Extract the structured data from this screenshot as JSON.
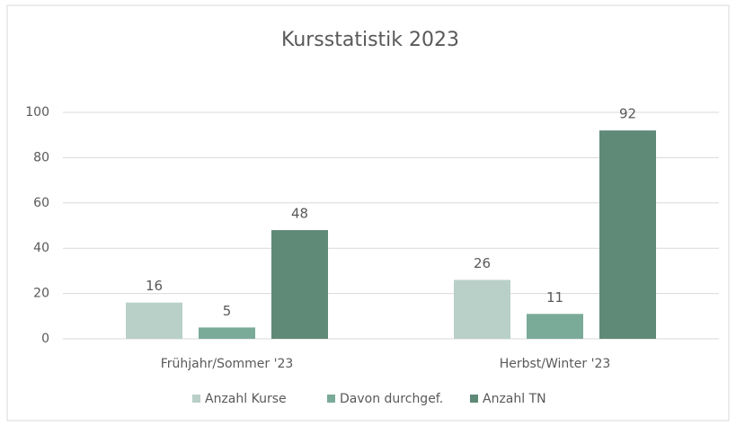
{
  "chart_data": {
    "type": "bar",
    "title": "Kursstatistik 2023",
    "categories": [
      "Frühjahr/Sommer '23",
      "Herbst/Winter '23"
    ],
    "series": [
      {
        "name": "Anzahl Kurse",
        "color": "#b9d0c8",
        "values": [
          16,
          26
        ]
      },
      {
        "name": "Davon durchgef.",
        "color": "#7aab99",
        "values": [
          5,
          11
        ]
      },
      {
        "name": "Anzahl TN",
        "color": "#5f8a78",
        "values": [
          48,
          92
        ]
      }
    ],
    "ylim": [
      0,
      100
    ],
    "yticks": [
      0,
      20,
      40,
      60,
      80,
      100
    ],
    "grid": true,
    "legend": "bottom"
  }
}
